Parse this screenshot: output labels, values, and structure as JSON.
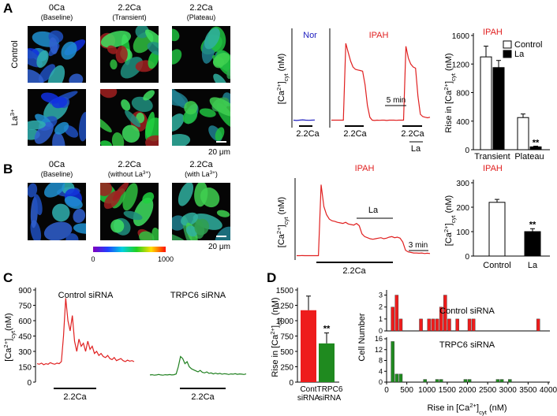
{
  "panel_labels": [
    "A",
    "B",
    "C",
    "D"
  ],
  "A": {
    "images": {
      "columns": [
        {
          "title": "0Ca",
          "sub": [
            "(Baseline)"
          ]
        },
        {
          "title": "2.2Ca",
          "sub": [
            "(Transient)"
          ]
        },
        {
          "title": "2.2Ca",
          "sub": [
            "(Plateau)"
          ]
        }
      ],
      "rows": [
        [
          "Control"
        ],
        [
          "La",
          "3+"
        ]
      ],
      "scale": "20 μm"
    },
    "traces": {
      "ylabel": [
        "[Ca",
        "2+",
        "]",
        "cyt",
        " (nM)"
      ],
      "ylim": [
        0,
        1600
      ],
      "nor": {
        "name": "Nor",
        "color": "#2020c0",
        "values": [
          100,
          95,
          100,
          105,
          100,
          98,
          100,
          102
        ]
      },
      "ipah": {
        "name": "IPAH",
        "color": "#e02020",
        "values": [
          100,
          100,
          100,
          100,
          100,
          100,
          1400,
          1250,
          1100,
          1000,
          960,
          950,
          940,
          930,
          700,
          350,
          150,
          100,
          95,
          100,
          98,
          100,
          100,
          95,
          100,
          100,
          100,
          98,
          100,
          100,
          100,
          1350,
          1150,
          1050,
          1000,
          980,
          500,
          200,
          160,
          150,
          140,
          150
        ]
      },
      "stim": "2.2Ca",
      "scale_bar": "5 min",
      "la": "La"
    },
    "bar": {
      "type": "bar",
      "title": "IPAH",
      "ylabel": [
        "Rise in [Ca",
        "2+",
        "]",
        "cyt",
        " (nM)"
      ],
      "categories": [
        "Transient",
        "Plateau"
      ],
      "series": [
        {
          "name": "Control",
          "color": "#ffffff",
          "values": [
            1300,
            450
          ],
          "errors": [
            150,
            50
          ]
        },
        {
          "name": "La",
          "color": "#000000",
          "values": [
            1150,
            40
          ],
          "errors": [
            100,
            10
          ]
        }
      ],
      "ylim": [
        0,
        1600
      ],
      "yticks": [
        0,
        400,
        800,
        1200,
        1600
      ],
      "annotation": "**"
    }
  },
  "B": {
    "images": {
      "columns": [
        {
          "title": "0Ca",
          "sub": [
            "(Baseline)"
          ]
        },
        {
          "title": "2.2Ca",
          "sub": [
            "(without La",
            "3+",
            ")"
          ]
        },
        {
          "title": "2.2Ca",
          "sub": [
            "(with La",
            "3+",
            ")"
          ]
        }
      ],
      "scale": "20 μm",
      "colorbar": [
        0,
        1000
      ]
    },
    "traces": {
      "title": "IPAH",
      "ylabel": [
        "[Ca",
        "2+",
        "]",
        "cyt",
        " (nM)"
      ],
      "ylim": [
        0,
        1500
      ],
      "color": "#e02020",
      "values": [
        50,
        50,
        52,
        50,
        50,
        51,
        50,
        50,
        50,
        1350,
        950,
        800,
        720,
        690,
        680,
        660,
        650,
        640,
        660,
        630,
        620,
        610,
        640,
        600,
        450,
        400,
        380,
        360,
        350,
        360,
        370,
        380,
        360,
        370,
        390,
        400,
        380,
        390,
        370,
        300,
        150,
        120,
        110,
        100,
        100,
        95,
        100,
        90,
        95,
        90
      ],
      "stim": "2.2Ca",
      "la": "La",
      "scale_bar": "3 min"
    },
    "bar": {
      "type": "bar",
      "title": "IPAH",
      "ylabel": [
        "[Ca",
        "2+",
        "]",
        "cyt",
        " (nM)"
      ],
      "categories": [
        "Control",
        "La"
      ],
      "colors": [
        "#ffffff",
        "#000000"
      ],
      "values": [
        220,
        100
      ],
      "errors": [
        12,
        12
      ],
      "ylim": [
        0,
        300
      ],
      "yticks": [
        0,
        100,
        200,
        300
      ],
      "annotation": "**"
    }
  },
  "C": {
    "ylabel": [
      "[Ca",
      "2+",
      "]",
      "cyt",
      "(nM)"
    ],
    "ylim": [
      0,
      900
    ],
    "yticks": [
      0,
      150,
      300,
      450,
      600,
      750,
      900
    ],
    "stim": "2.2Ca",
    "series": [
      {
        "name": "Control siRNA",
        "color": "#e02020",
        "values": [
          180,
          175,
          185,
          170,
          180,
          175,
          190,
          180,
          175,
          185,
          180,
          200,
          450,
          820,
          600,
          500,
          650,
          400,
          300,
          420,
          350,
          380,
          300,
          400,
          320,
          350,
          280,
          300,
          260,
          280,
          250,
          240,
          260,
          230,
          220,
          240,
          210,
          220,
          230,
          210,
          200,
          215,
          205,
          210,
          200
        ]
      },
      {
        "name": "TRPC6 siRNA",
        "color": "#208020",
        "values": [
          70,
          72,
          68,
          70,
          75,
          70,
          68,
          72,
          70,
          74,
          70,
          72,
          80,
          150,
          250,
          230,
          180,
          200,
          150,
          130,
          120,
          110,
          100,
          115,
          95,
          90,
          100,
          85,
          90,
          80,
          88,
          80,
          85,
          78,
          82,
          80,
          75,
          80,
          78,
          82,
          76,
          80,
          78,
          75,
          80
        ]
      }
    ]
  },
  "D": {
    "bar": {
      "type": "bar",
      "ylabel": [
        "Rise in [Ca",
        "2+",
        "]",
        "cyt",
        " (nM)"
      ],
      "categories": [
        [
          "Cont",
          "siRNA"
        ],
        [
          "TRPC6",
          "siRNA"
        ]
      ],
      "colors": [
        "#ee1c1c",
        "#1f8a1f"
      ],
      "values": [
        1170,
        630
      ],
      "errors": [
        230,
        170
      ],
      "ylim": [
        0,
        1500
      ],
      "yticks": [
        0,
        250,
        500,
        750,
        1000,
        1250,
        1500
      ],
      "annotation": "**"
    },
    "histogram": {
      "type": "histogram",
      "ylabel": "Cell Number",
      "xlabel": [
        "Rise in [Ca",
        "2+",
        "]",
        "cyt",
        " (nM)"
      ],
      "xlim": [
        0,
        4000
      ],
      "xticks": [
        0,
        500,
        1000,
        1500,
        2000,
        2500,
        3000,
        3500,
        4000
      ],
      "bins": [
        0,
        100,
        200,
        300,
        400,
        500,
        600,
        700,
        800,
        900,
        1000,
        1100,
        1200,
        1300,
        1400,
        1500,
        1600,
        1700,
        1800,
        1900,
        2000,
        2100,
        2200,
        2300,
        2400,
        2500,
        2600,
        2700,
        2800,
        2900,
        3000,
        3100,
        3200,
        3300,
        3400,
        3500,
        3600,
        3700,
        3800,
        3900,
        4000
      ],
      "series": [
        {
          "name": "Control siRNA",
          "color": "#ee1c1c",
          "ylim": [
            0,
            3.3
          ],
          "yticks": [
            0,
            1,
            2,
            3
          ],
          "counts": [
            0,
            2,
            3,
            1,
            0,
            0,
            0,
            0,
            1,
            0,
            1,
            1,
            1,
            2,
            3,
            1,
            0,
            1,
            0,
            0,
            1,
            1,
            0,
            0,
            0,
            0,
            0,
            0,
            0,
            0,
            0,
            0,
            0,
            0,
            0,
            0,
            0,
            1,
            0,
            0
          ]
        },
        {
          "name": "TRPC6 siRNA",
          "color": "#1f8a1f",
          "ylim": [
            0,
            16
          ],
          "yticks": [
            0,
            4,
            8,
            12,
            16
          ],
          "counts": [
            0,
            15,
            3,
            3,
            0,
            0,
            0,
            0,
            0,
            1,
            0,
            0,
            1,
            1,
            0,
            0,
            0,
            0,
            0,
            1,
            1,
            0,
            0,
            0,
            0,
            0,
            0,
            1,
            1,
            0,
            1,
            0,
            0,
            0,
            0,
            0,
            0,
            0,
            0,
            0
          ]
        }
      ]
    }
  }
}
